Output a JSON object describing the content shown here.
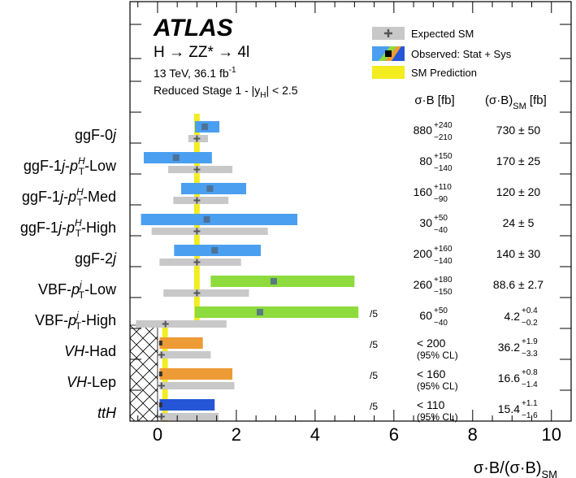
{
  "chart_data": {
    "type": "forest",
    "experiment": "ATLAS",
    "process": "H → ZZ* → 4l",
    "energy_lumi": "13 TeV, 36.1 fb",
    "lumi_exponent": "-1",
    "stage": "Reduced Stage 1 - |y",
    "stage_sub": "H",
    "stage_tail": "| < 2.5",
    "xlabel": "σ·B/(σ·B)",
    "xlabel_sub": "SM",
    "xlim": [
      -0.7,
      10.5
    ],
    "xticks": [
      0,
      2,
      4,
      6,
      8,
      10
    ],
    "sm_value": 1,
    "legend": {
      "expected": "Expected SM",
      "observed": "Observed: Stat + Sys",
      "sm": "SM Prediction"
    },
    "col_headers": {
      "obs": "σ·B [fb]",
      "sm": "(σ·B)",
      "sm_sub": "SM",
      "sm_unit": " [fb]"
    },
    "colors": {
      "ggf": "#4a9ff0",
      "vbf": "#8ddb3c",
      "vh": "#ed9b35",
      "tth": "#2456d6",
      "expected": "#c8c8c8",
      "sm": "#f3ec1f",
      "marker": "#555555"
    },
    "categories": [
      {
        "label": "ggF-0",
        "italic": "j",
        "color": "ggf",
        "obs": 1.2,
        "obs_lo": 0.95,
        "obs_hi": 1.57,
        "exp_lo": 0.78,
        "exp_hi": 1.28,
        "limit": false,
        "scale": "",
        "obs_text": "880",
        "obs_up": "+240",
        "obs_dn": "−210",
        "obs_cl": "",
        "sm_text": "730 ± 50",
        "sm_up": "",
        "sm_dn": ""
      },
      {
        "label": "ggF-1",
        "italic": "j",
        "pt": "-Low",
        "color": "ggf",
        "obs": 0.47,
        "obs_lo": -0.35,
        "obs_hi": 1.38,
        "exp_lo": 0.27,
        "exp_hi": 1.9,
        "limit": false,
        "scale": "",
        "obs_text": "80",
        "obs_up": "+150",
        "obs_dn": "−140",
        "obs_cl": "",
        "sm_text": "170 ± 25",
        "sm_up": "",
        "sm_dn": ""
      },
      {
        "label": "ggF-1",
        "italic": "j",
        "pt": "-Med",
        "color": "ggf",
        "obs": 1.33,
        "obs_lo": 0.6,
        "obs_hi": 2.25,
        "exp_lo": 0.4,
        "exp_hi": 1.8,
        "limit": false,
        "scale": "",
        "obs_text": "160",
        "obs_up": "+110",
        "obs_dn": "−90",
        "obs_cl": "",
        "sm_text": "120 ± 20",
        "sm_up": "",
        "sm_dn": ""
      },
      {
        "label": "ggF-1",
        "italic": "j",
        "pt": "-High",
        "color": "ggf",
        "obs": 1.25,
        "obs_lo": -0.42,
        "obs_hi": 3.55,
        "exp_lo": -0.15,
        "exp_hi": 2.8,
        "limit": false,
        "scale": "",
        "obs_text": "30",
        "obs_up": "+50",
        "obs_dn": "−40",
        "obs_cl": "",
        "sm_text": "24 ± 5",
        "sm_up": "",
        "sm_dn": ""
      },
      {
        "label": "ggF-2",
        "italic": "j",
        "color": "ggf",
        "obs": 1.45,
        "obs_lo": 0.42,
        "obs_hi": 2.62,
        "exp_lo": 0.05,
        "exp_hi": 2.12,
        "limit": false,
        "scale": "",
        "obs_text": "200",
        "obs_up": "+160",
        "obs_dn": "−140",
        "obs_cl": "",
        "sm_text": "140 ± 30",
        "sm_up": "",
        "sm_dn": ""
      },
      {
        "label": "VBF-",
        "ptj": "-Low",
        "color": "vbf",
        "obs": 2.95,
        "obs_lo": 1.35,
        "obs_hi": 5.0,
        "exp_lo": 0.15,
        "exp_hi": 2.32,
        "limit": false,
        "scale": "",
        "obs_text": "260",
        "obs_up": "+180",
        "obs_dn": "−150",
        "obs_cl": "",
        "sm_text": "88.6 ± 2.7",
        "sm_up": "",
        "sm_dn": ""
      },
      {
        "label": "VBF-",
        "ptj": "-High",
        "color": "vbf",
        "obs": 2.6,
        "obs_lo": 0.95,
        "obs_hi": 5.1,
        "exp_lo": -0.55,
        "exp_hi": 1.75,
        "exp_center": 0.2,
        "limit": false,
        "scale": "/5",
        "obs_text": "60",
        "obs_up": "+50",
        "obs_dn": "−40",
        "obs_cl": "",
        "sm_text": "4.2",
        "sm_up": "+0.4",
        "sm_dn": "−0.2"
      },
      {
        "label": "",
        "italic": "VH",
        "tail": "-Had",
        "color": "vh",
        "obs_lo": 0.05,
        "obs_hi": 1.15,
        "exp_lo": 0.05,
        "exp_hi": 1.35,
        "limit": true,
        "scale": "/5",
        "obs_text": "< 200",
        "obs_up": "",
        "obs_dn": "",
        "obs_cl": "(95% CL)",
        "sm_text": "36.2",
        "sm_up": "+1.9",
        "sm_dn": "−3.3"
      },
      {
        "label": "",
        "italic": "VH",
        "tail": "-Lep",
        "color": "vh",
        "obs_lo": 0.05,
        "obs_hi": 1.9,
        "exp_lo": 0.05,
        "exp_hi": 1.95,
        "limit": true,
        "scale": "/5",
        "obs_text": "< 160",
        "obs_up": "",
        "obs_dn": "",
        "obs_cl": "(95% CL)",
        "sm_text": "16.6",
        "sm_up": "+0.8",
        "sm_dn": "−1.4"
      },
      {
        "label": "",
        "italic": "ttH",
        "color": "tth",
        "obs_lo": 0.05,
        "obs_hi": 1.45,
        "exp_lo": 0.05,
        "exp_hi": 1.55,
        "limit": true,
        "scale": "/5",
        "obs_text": "< 110",
        "obs_up": "",
        "obs_dn": "",
        "obs_cl": "(95% CL)",
        "sm_text": "15.4",
        "sm_up": "+1.1",
        "sm_dn": "−1.6"
      }
    ]
  }
}
